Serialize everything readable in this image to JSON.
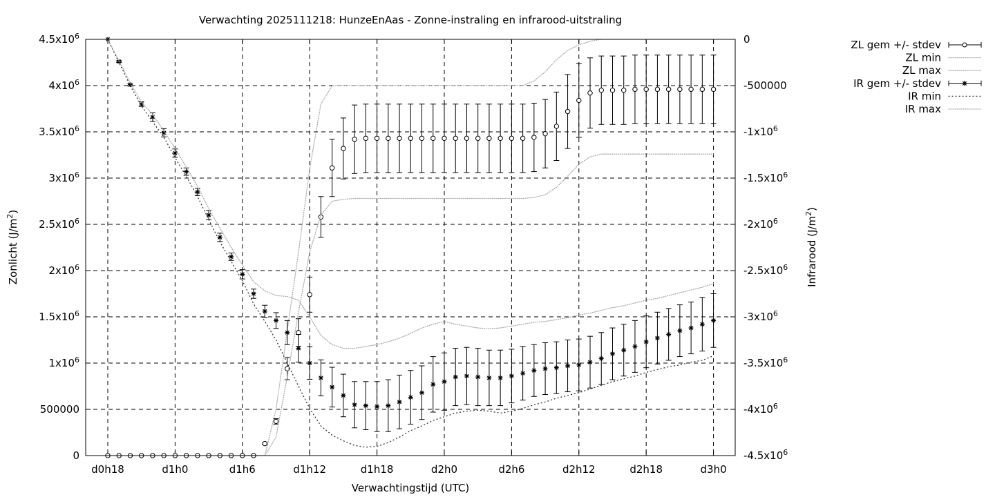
{
  "chart_data": {
    "type": "line",
    "title": "Verwachting 2025111218: HunzeEnAas - Zonne-instraling en infrarood-uitstraling",
    "xlabel": "Verwachtingstijd (UTC)",
    "ylabel": "Zonlicht (J/m²)",
    "y2label": "Infrarood (J/m²)",
    "x_unit": "hours since d0h18",
    "xlim": [
      -2,
      56
    ],
    "ylim": [
      0,
      4500000
    ],
    "y2lim": [
      -4500000,
      0
    ],
    "grid": true,
    "legend_position": "outside-right",
    "x_ticks": [
      {
        "x": 0,
        "label": "d0h18"
      },
      {
        "x": 6,
        "label": "d1h0"
      },
      {
        "x": 12,
        "label": "d1h6"
      },
      {
        "x": 18,
        "label": "d1h12"
      },
      {
        "x": 24,
        "label": "d1h18"
      },
      {
        "x": 30,
        "label": "d2h0"
      },
      {
        "x": 36,
        "label": "d2h6"
      },
      {
        "x": 42,
        "label": "d2h12"
      },
      {
        "x": 48,
        "label": "d2h18"
      },
      {
        "x": 54,
        "label": "d3h0"
      }
    ],
    "y_ticks": [
      {
        "v": 0,
        "b": "0",
        "e": ""
      },
      {
        "v": 500000,
        "b": "500000",
        "e": ""
      },
      {
        "v": 1000000,
        "b": "1x10",
        "e": "6"
      },
      {
        "v": 1500000,
        "b": "1.5x10",
        "e": "6"
      },
      {
        "v": 2000000,
        "b": "2x10",
        "e": "6"
      },
      {
        "v": 2500000,
        "b": "2.5x10",
        "e": "6"
      },
      {
        "v": 3000000,
        "b": "3x10",
        "e": "6"
      },
      {
        "v": 3500000,
        "b": "3.5x10",
        "e": "6"
      },
      {
        "v": 4000000,
        "b": "4x10",
        "e": "6"
      },
      {
        "v": 4500000,
        "b": "4.5x10",
        "e": "6"
      }
    ],
    "y2_ticks": [
      {
        "v": 0,
        "b": "0",
        "e": ""
      },
      {
        "v": -500000,
        "b": "-500000",
        "e": ""
      },
      {
        "v": -1000000,
        "b": "-1x10",
        "e": "6"
      },
      {
        "v": -1500000,
        "b": "-1.5x10",
        "e": "6"
      },
      {
        "v": -2000000,
        "b": "-2x10",
        "e": "6"
      },
      {
        "v": -2500000,
        "b": "-2.5x10",
        "e": "6"
      },
      {
        "v": -3000000,
        "b": "-3x10",
        "e": "6"
      },
      {
        "v": -3500000,
        "b": "-3.5x10",
        "e": "6"
      },
      {
        "v": -4000000,
        "b": "-4x10",
        "e": "6"
      },
      {
        "v": -4500000,
        "b": "-4.5x10",
        "e": "6"
      }
    ],
    "x": [
      0,
      1,
      2,
      3,
      4,
      5,
      6,
      7,
      8,
      9,
      10,
      11,
      12,
      13,
      14,
      15,
      16,
      17,
      18,
      19,
      20,
      21,
      22,
      23,
      24,
      25,
      26,
      27,
      28,
      29,
      30,
      31,
      32,
      33,
      34,
      35,
      36,
      37,
      38,
      39,
      40,
      41,
      42,
      43,
      44,
      45,
      46,
      47,
      48,
      49,
      50,
      51,
      52,
      53,
      54
    ],
    "series": [
      {
        "name": "ZL gem +/- stdev",
        "axis": "y1",
        "marker": "circle",
        "values": [
          0,
          0,
          0,
          0,
          0,
          0,
          0,
          0,
          0,
          0,
          0,
          0,
          0,
          0,
          130000,
          370000,
          940000,
          1330000,
          1740000,
          2580000,
          3110000,
          3320000,
          3420000,
          3430000,
          3430000,
          3430000,
          3430000,
          3430000,
          3430000,
          3430000,
          3430000,
          3430000,
          3430000,
          3430000,
          3430000,
          3430000,
          3430000,
          3430000,
          3440000,
          3480000,
          3560000,
          3720000,
          3840000,
          3920000,
          3950000,
          3950000,
          3950000,
          3960000,
          3960000,
          3960000,
          3960000,
          3960000,
          3960000,
          3960000,
          3960000
        ],
        "stdev": [
          0,
          0,
          0,
          0,
          0,
          0,
          0,
          0,
          0,
          0,
          0,
          0,
          0,
          0,
          10000,
          30000,
          120000,
          150000,
          190000,
          220000,
          310000,
          330000,
          370000,
          370000,
          370000,
          370000,
          370000,
          370000,
          370000,
          370000,
          370000,
          370000,
          370000,
          370000,
          370000,
          370000,
          370000,
          370000,
          370000,
          370000,
          370000,
          400000,
          400000,
          380000,
          370000,
          370000,
          370000,
          370000,
          370000,
          370000,
          370000,
          370000,
          370000,
          370000,
          370000
        ]
      },
      {
        "name": "ZL min",
        "axis": "y1",
        "x": [
          11,
          12,
          13,
          14,
          15,
          16,
          17,
          18,
          19,
          20,
          21,
          22,
          23,
          24,
          25,
          26,
          27,
          28,
          29,
          30,
          31,
          32,
          33,
          34,
          35,
          36,
          37,
          38,
          39,
          40,
          41,
          42,
          43,
          44,
          45,
          46,
          47,
          48,
          49,
          50,
          51,
          52,
          53,
          54
        ],
        "values": [
          0,
          0,
          0,
          0,
          200000,
          850000,
          1550000,
          2200000,
          2600000,
          2750000,
          2770000,
          2780000,
          2780000,
          2780000,
          2780000,
          2780000,
          2780000,
          2780000,
          2780000,
          2780000,
          2780000,
          2780000,
          2780000,
          2780000,
          2780000,
          2780000,
          2780000,
          2790000,
          2820000,
          2900000,
          3020000,
          3150000,
          3230000,
          3260000,
          3260000,
          3260000,
          3260000,
          3260000,
          3260000,
          3260000,
          3260000,
          3260000,
          3260000,
          3260000
        ]
      },
      {
        "name": "ZL max",
        "axis": "y1",
        "x": [
          11,
          12,
          13,
          14,
          15,
          16,
          17,
          18,
          19,
          20,
          21,
          22,
          23,
          24,
          25,
          26,
          27,
          28,
          29,
          30,
          31,
          32,
          33,
          34,
          35,
          36,
          37,
          38,
          39,
          40,
          41,
          42,
          43,
          44,
          45,
          46,
          47,
          48,
          49,
          50,
          51,
          52,
          53,
          54
        ],
        "values": [
          0,
          0,
          0,
          0,
          500000,
          1350000,
          2200000,
          3100000,
          3800000,
          4000000,
          4000000,
          4000000,
          4000000,
          4000000,
          4000000,
          4000000,
          4000000,
          4000000,
          4000000,
          4000000,
          4000000,
          4000000,
          4000000,
          4000000,
          4000000,
          4000000,
          4000000,
          4050000,
          4150000,
          4280000,
          4380000,
          4440000,
          4480000,
          4500000,
          4500000,
          4500000,
          4500000,
          4500000,
          4500000,
          4500000,
          4500000,
          4500000,
          4500000,
          4500000
        ]
      },
      {
        "name": "IR gem +/- stdev",
        "axis": "y2",
        "marker": "star",
        "values": [
          0,
          -240000,
          -490000,
          -700000,
          -840000,
          -1010000,
          -1230000,
          -1430000,
          -1650000,
          -1900000,
          -2140000,
          -2350000,
          -2540000,
          -2750000,
          -2940000,
          -3040000,
          -3170000,
          -3340000,
          -3500000,
          -3660000,
          -3760000,
          -3850000,
          -3950000,
          -3960000,
          -3970000,
          -3960000,
          -3920000,
          -3870000,
          -3820000,
          -3730000,
          -3700000,
          -3650000,
          -3640000,
          -3650000,
          -3660000,
          -3660000,
          -3640000,
          -3610000,
          -3580000,
          -3560000,
          -3550000,
          -3530000,
          -3520000,
          -3490000,
          -3450000,
          -3400000,
          -3360000,
          -3320000,
          -3270000,
          -3230000,
          -3190000,
          -3150000,
          -3120000,
          -3080000,
          -3040000
        ],
        "stdev": [
          0,
          10000,
          15000,
          25000,
          45000,
          45000,
          45000,
          40000,
          40000,
          50000,
          45000,
          40000,
          50000,
          50000,
          65000,
          85000,
          130000,
          150000,
          175000,
          195000,
          215000,
          230000,
          250000,
          260000,
          270000,
          280000,
          290000,
          290000,
          290000,
          300000,
          310000,
          310000,
          310000,
          310000,
          300000,
          300000,
          290000,
          290000,
          280000,
          280000,
          280000,
          280000,
          280000,
          280000,
          280000,
          280000,
          280000,
          280000,
          280000,
          280000,
          280000,
          280000,
          280000,
          290000,
          290000
        ]
      },
      {
        "name": "IR min",
        "axis": "y2",
        "values": [
          0,
          -250000,
          -500000,
          -720000,
          -890000,
          -1060000,
          -1280000,
          -1480000,
          -1700000,
          -1950000,
          -2190000,
          -2400000,
          -2610000,
          -2860000,
          -3050000,
          -3250000,
          -3500000,
          -3750000,
          -3990000,
          -4180000,
          -4280000,
          -4340000,
          -4390000,
          -4410000,
          -4400000,
          -4360000,
          -4300000,
          -4230000,
          -4180000,
          -4120000,
          -4080000,
          -4040000,
          -4020000,
          -4010000,
          -4020000,
          -4040000,
          -4020000,
          -3990000,
          -3950000,
          -3920000,
          -3880000,
          -3850000,
          -3820000,
          -3780000,
          -3740000,
          -3700000,
          -3670000,
          -3640000,
          -3600000,
          -3570000,
          -3540000,
          -3520000,
          -3490000,
          -3470000,
          -3420000
        ]
      },
      {
        "name": "IR max",
        "axis": "y2",
        "values": [
          0,
          -230000,
          -470000,
          -680000,
          -810000,
          -990000,
          -1180000,
          -1380000,
          -1590000,
          -1830000,
          -2040000,
          -2250000,
          -2440000,
          -2620000,
          -2720000,
          -2770000,
          -2780000,
          -2820000,
          -3000000,
          -3200000,
          -3300000,
          -3340000,
          -3340000,
          -3320000,
          -3300000,
          -3270000,
          -3230000,
          -3180000,
          -3120000,
          -3080000,
          -3050000,
          -3080000,
          -3100000,
          -3120000,
          -3130000,
          -3120000,
          -3100000,
          -3080000,
          -3060000,
          -3050000,
          -3030000,
          -3010000,
          -2980000,
          -2960000,
          -2930000,
          -2900000,
          -2880000,
          -2850000,
          -2820000,
          -2800000,
          -2770000,
          -2740000,
          -2710000,
          -2680000,
          -2640000
        ]
      }
    ]
  }
}
